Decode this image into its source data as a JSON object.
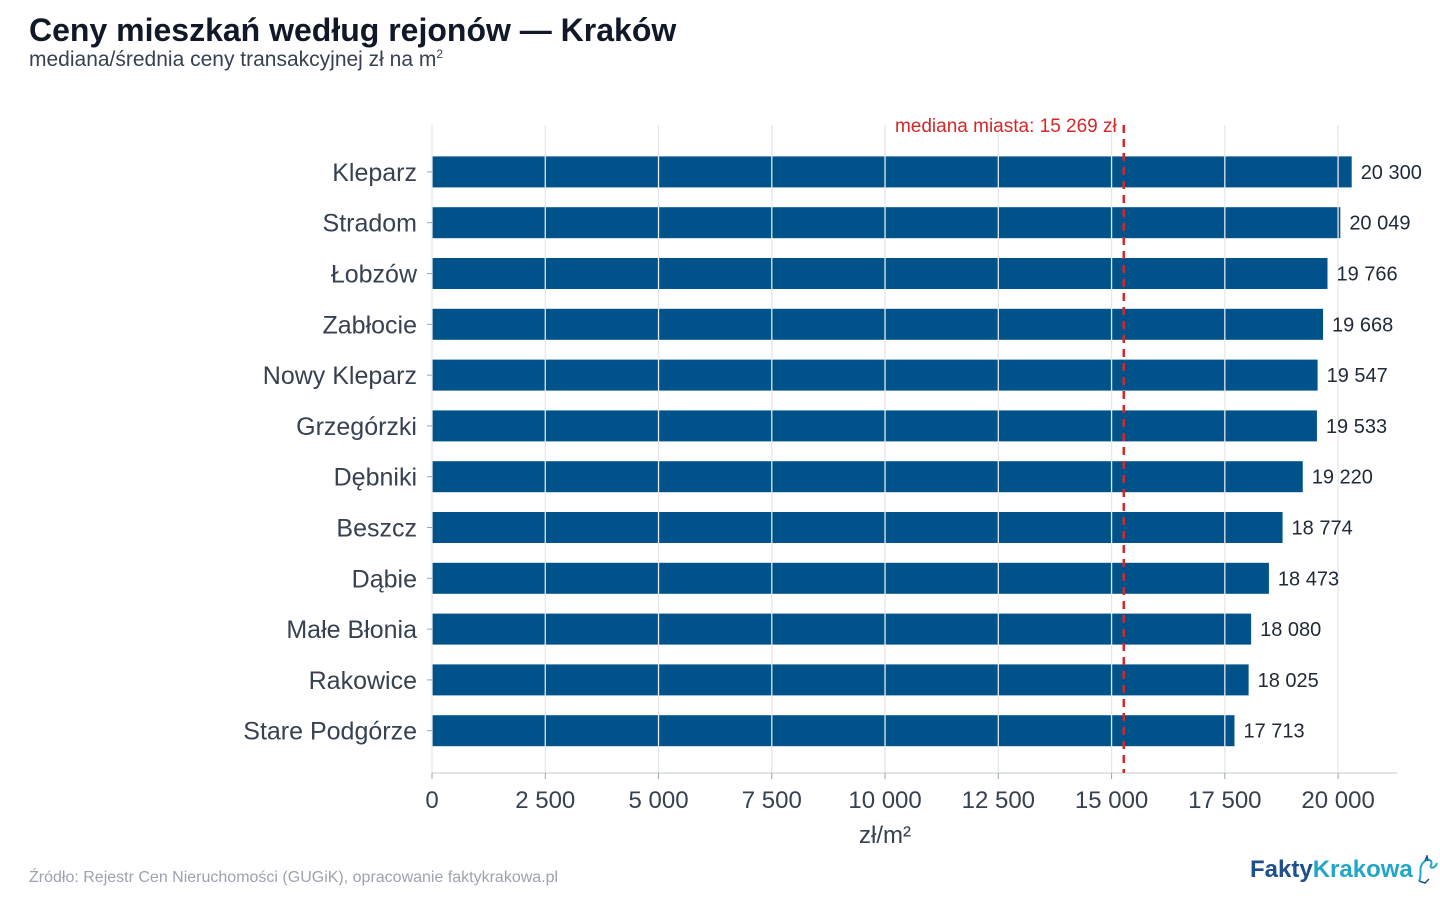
{
  "header": {
    "title": "Ceny mieszkań według rejonów — Kraków",
    "subtitle": "mediana/średnia ceny transakcyjnej zł na m",
    "subtitle_sup": "2"
  },
  "footer": {
    "source": "Źródło: Rejestr Cen Nieruchomości (GUGiK), opracowanie faktykrakowa.pl",
    "logo_part1": "Fakty",
    "logo_part2": "Krakowa"
  },
  "colors": {
    "bar": "#00538a",
    "median_line": "#d62728",
    "grid": "#e5e7eb",
    "axis_text": "#374151"
  },
  "chart_data": {
    "type": "bar",
    "orientation": "horizontal",
    "categories": [
      "Kleparz",
      "Stradom",
      "Łobzów",
      "Zabłocie",
      "Nowy Kleparz",
      "Grzegórzki",
      "Dębniki",
      "Beszcz",
      "Dąbie",
      "Małe Błonia",
      "Rakowice",
      "Stare Podgórze"
    ],
    "values": [
      20300,
      20049,
      19766,
      19668,
      19547,
      19533,
      19220,
      18774,
      18473,
      18080,
      18025,
      17713
    ],
    "value_labels": [
      "20 300",
      "20 049",
      "19 766",
      "19 668",
      "19 547",
      "19 533",
      "19 220",
      "18 774",
      "18 473",
      "18 080",
      "18 025",
      "17 713"
    ],
    "xlabel": "zł/m²",
    "xlim": [
      0,
      21300
    ],
    "xticks": [
      0,
      2500,
      5000,
      7500,
      10000,
      12500,
      15000,
      17500,
      20000
    ],
    "xtick_labels": [
      "0",
      "2 500",
      "5 000",
      "7 500",
      "10 000",
      "12 500",
      "15 000",
      "17 500",
      "20 000"
    ],
    "grid": true,
    "reference_line": {
      "value": 15269,
      "label": "mediana miasta: 15 269 zł"
    }
  }
}
